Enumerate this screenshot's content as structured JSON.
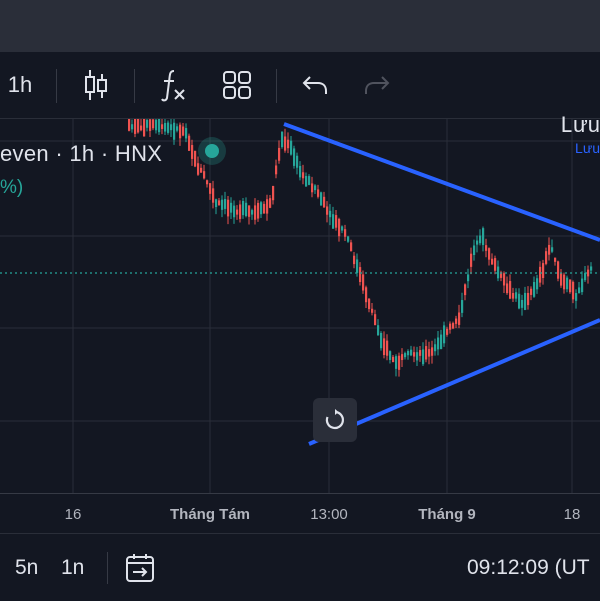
{
  "toolbar": {
    "interval": "1h",
    "save_label": "Lưu",
    "save_sublabel": "Lưu"
  },
  "icons": {
    "candles": "candlestick-icon",
    "indicators": "fx-indicators-icon",
    "layouts": "grid-layout-icon",
    "undo": "undo-icon",
    "redo": "redo-icon",
    "reset": "reset-chart-icon",
    "date_range": "date-range-icon"
  },
  "legend": {
    "title": "even · 1h · HNX",
    "change": "%)"
  },
  "colors": {
    "up": "#26a69a",
    "down": "#ef5350",
    "trendline": "#2962ff",
    "background": "#131722"
  },
  "chart_data": {
    "type": "candlestick",
    "x_tick_labels": [
      "16",
      "Tháng Tám",
      "13:00",
      "Tháng 9",
      "18"
    ],
    "annotations": [
      "symmetrical triangle trendlines"
    ]
  },
  "bottombar": {
    "ranges": [
      "5n",
      "1n"
    ],
    "time": "09:12:09 (UT"
  }
}
